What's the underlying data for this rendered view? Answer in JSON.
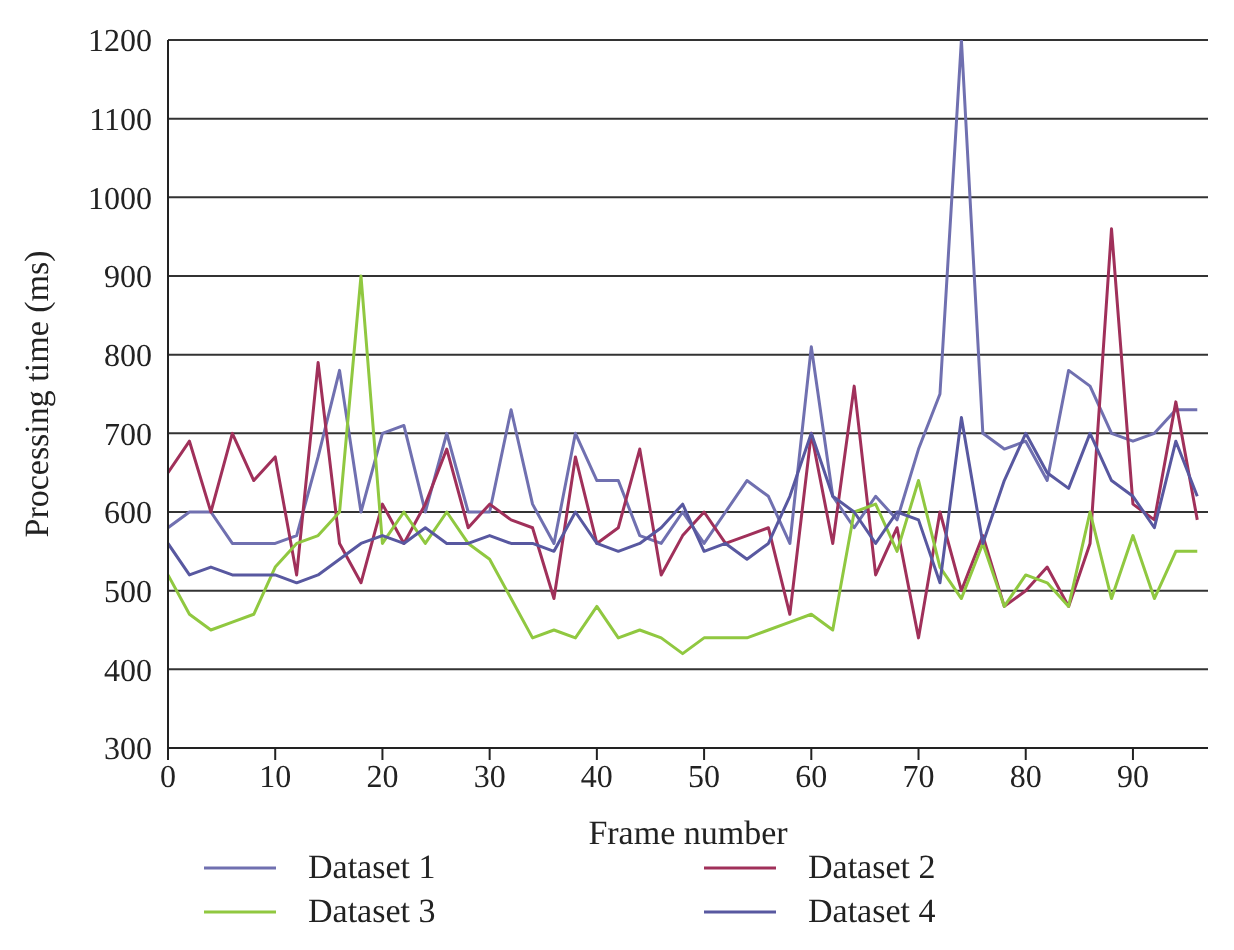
{
  "chart_data": {
    "type": "line",
    "xlabel": "Frame number",
    "ylabel": "Processing time (ms)",
    "x": [
      0,
      2,
      4,
      6,
      8,
      10,
      12,
      14,
      16,
      18,
      20,
      22,
      24,
      26,
      28,
      30,
      32,
      34,
      36,
      38,
      40,
      42,
      44,
      46,
      48,
      50,
      52,
      54,
      56,
      58,
      60,
      62,
      64,
      66,
      68,
      70,
      72,
      74,
      76,
      78,
      80,
      82,
      84,
      86,
      88,
      90,
      92,
      94,
      96
    ],
    "series": [
      {
        "name": "Dataset 1",
        "color": "#7070b0",
        "values": [
          580,
          600,
          600,
          560,
          560,
          560,
          570,
          670,
          780,
          600,
          700,
          710,
          600,
          700,
          600,
          600,
          730,
          610,
          560,
          700,
          640,
          640,
          570,
          560,
          600,
          560,
          600,
          640,
          620,
          560,
          810,
          620,
          580,
          620,
          590,
          680,
          750,
          1200,
          700,
          680,
          690,
          640,
          780,
          760,
          700,
          690,
          700,
          730,
          730
        ]
      },
      {
        "name": "Dataset 2",
        "color": "#a0305a",
        "values": [
          650,
          690,
          600,
          700,
          640,
          670,
          520,
          790,
          560,
          510,
          610,
          560,
          610,
          680,
          580,
          610,
          590,
          580,
          490,
          670,
          560,
          580,
          680,
          520,
          570,
          600,
          560,
          570,
          580,
          470,
          700,
          560,
          760,
          520,
          580,
          440,
          600,
          500,
          570,
          480,
          500,
          530,
          480,
          560,
          960,
          610,
          590,
          740,
          590
        ]
      },
      {
        "name": "Dataset 3",
        "color": "#90c840",
        "values": [
          520,
          470,
          450,
          460,
          470,
          530,
          560,
          570,
          600,
          900,
          560,
          600,
          560,
          600,
          560,
          540,
          490,
          440,
          450,
          440,
          480,
          440,
          450,
          440,
          420,
          440,
          440,
          440,
          450,
          460,
          470,
          450,
          600,
          610,
          550,
          640,
          530,
          490,
          560,
          480,
          520,
          510,
          480,
          600,
          490,
          570,
          490,
          550,
          550
        ]
      },
      {
        "name": "Dataset 4",
        "color": "#5858a0",
        "values": [
          560,
          520,
          530,
          520,
          520,
          520,
          510,
          520,
          540,
          560,
          570,
          560,
          580,
          560,
          560,
          570,
          560,
          560,
          550,
          600,
          560,
          550,
          560,
          580,
          610,
          550,
          560,
          540,
          560,
          620,
          700,
          620,
          600,
          560,
          600,
          590,
          510,
          720,
          560,
          640,
          700,
          650,
          630,
          700,
          640,
          620,
          580,
          690,
          620
        ]
      }
    ],
    "xlim": [
      0,
      97
    ],
    "xticks": [
      0,
      10,
      20,
      30,
      40,
      50,
      60,
      70,
      80,
      90
    ],
    "ylim": [
      300,
      1200
    ],
    "yticks": [
      300,
      400,
      500,
      600,
      700,
      800,
      900,
      1000,
      1100,
      1200
    ],
    "grid": "y",
    "legend": "bottom",
    "marker": "none",
    "line_style": "solid"
  }
}
